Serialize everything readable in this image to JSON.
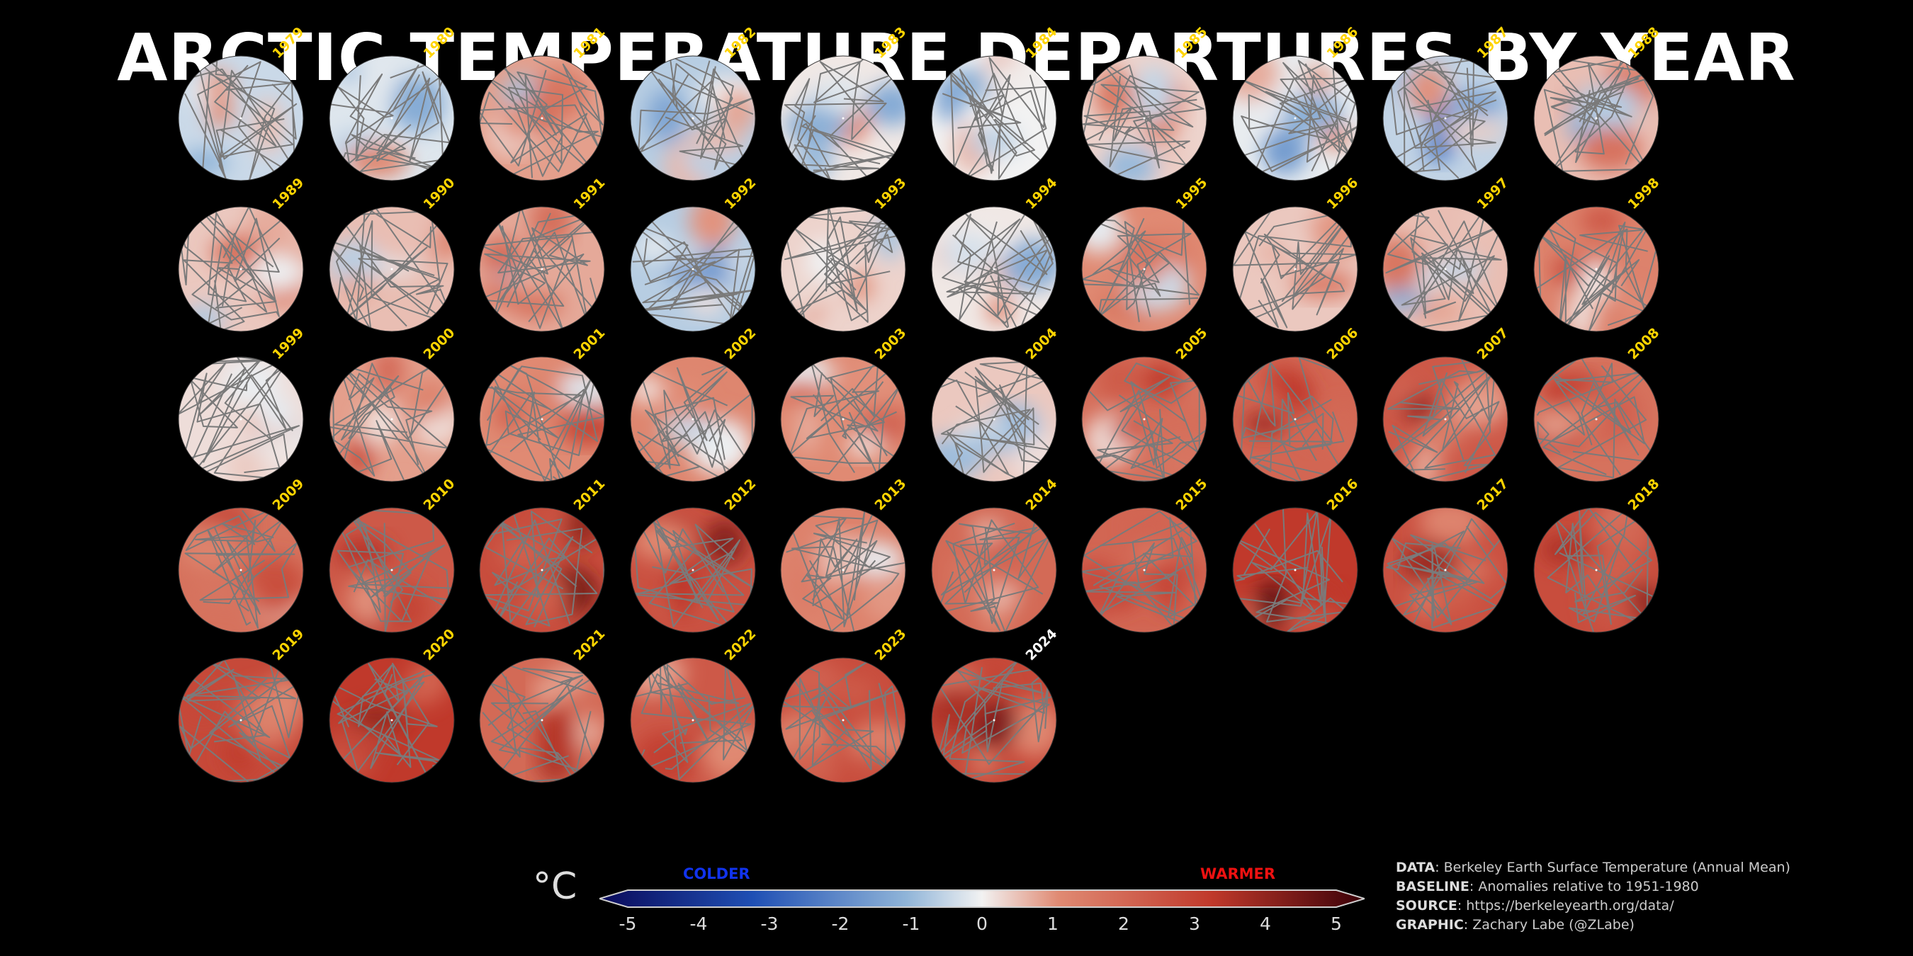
{
  "title": "ARCTIC TEMPERATURE DEPARTURES BY YEAR",
  "chart_data": {
    "type": "heatmap",
    "title": "ARCTIC TEMPERATURE DEPARTURES BY YEAR",
    "panels": [
      {
        "year": "1979",
        "mean_anomaly": -0.4
      },
      {
        "year": "1980",
        "mean_anomaly": -0.2
      },
      {
        "year": "1981",
        "mean_anomaly": 0.8
      },
      {
        "year": "1982",
        "mean_anomaly": -0.6
      },
      {
        "year": "1983",
        "mean_anomaly": 0.1
      },
      {
        "year": "1984",
        "mean_anomaly": 0.0
      },
      {
        "year": "1985",
        "mean_anomaly": 0.3
      },
      {
        "year": "1986",
        "mean_anomaly": -0.1
      },
      {
        "year": "1987",
        "mean_anomaly": -0.5
      },
      {
        "year": "1988",
        "mean_anomaly": 0.5
      },
      {
        "year": "1989",
        "mean_anomaly": 0.4
      },
      {
        "year": "1990",
        "mean_anomaly": 0.5
      },
      {
        "year": "1991",
        "mean_anomaly": 0.7
      },
      {
        "year": "1992",
        "mean_anomaly": -0.6
      },
      {
        "year": "1993",
        "mean_anomaly": 0.3
      },
      {
        "year": "1994",
        "mean_anomaly": 0.1
      },
      {
        "year": "1995",
        "mean_anomaly": 1.0
      },
      {
        "year": "1996",
        "mean_anomaly": 0.4
      },
      {
        "year": "1997",
        "mean_anomaly": 0.5
      },
      {
        "year": "1998",
        "mean_anomaly": 1.2
      },
      {
        "year": "1999",
        "mean_anomaly": 0.2
      },
      {
        "year": "2000",
        "mean_anomaly": 0.8
      },
      {
        "year": "2001",
        "mean_anomaly": 1.0
      },
      {
        "year": "2002",
        "mean_anomaly": 1.1
      },
      {
        "year": "2003",
        "mean_anomaly": 1.0
      },
      {
        "year": "2004",
        "mean_anomaly": 0.4
      },
      {
        "year": "2005",
        "mean_anomaly": 1.7
      },
      {
        "year": "2006",
        "mean_anomaly": 1.9
      },
      {
        "year": "2007",
        "mean_anomaly": 2.2
      },
      {
        "year": "2008",
        "mean_anomaly": 1.6
      },
      {
        "year": "2009",
        "mean_anomaly": 1.6
      },
      {
        "year": "2010",
        "mean_anomaly": 2.2
      },
      {
        "year": "2011",
        "mean_anomaly": 2.5
      },
      {
        "year": "2012",
        "mean_anomaly": 2.4
      },
      {
        "year": "2013",
        "mean_anomaly": 1.2
      },
      {
        "year": "2014",
        "mean_anomaly": 1.8
      },
      {
        "year": "2015",
        "mean_anomaly": 1.9
      },
      {
        "year": "2016",
        "mean_anomaly": 3.0
      },
      {
        "year": "2017",
        "mean_anomaly": 2.4
      },
      {
        "year": "2018",
        "mean_anomaly": 2.5
      },
      {
        "year": "2019",
        "mean_anomaly": 2.6
      },
      {
        "year": "2020",
        "mean_anomaly": 3.0
      },
      {
        "year": "2021",
        "mean_anomaly": 1.8
      },
      {
        "year": "2022",
        "mean_anomaly": 2.2
      },
      {
        "year": "2023",
        "mean_anomaly": 2.5
      },
      {
        "year": "2024",
        "mean_anomaly": 2.6
      }
    ],
    "colorbar": {
      "unit": "°C",
      "min": -5,
      "max": 5,
      "ticks": [
        "-5",
        "-4",
        "-3",
        "-2",
        "-1",
        "0",
        "1",
        "2",
        "3",
        "4",
        "5"
      ],
      "low_label": "COLDER",
      "high_label": "WARMER",
      "extend": "both"
    },
    "colors": {
      "cold_extreme": "#0a0a5a",
      "cold": "#1f4fb4",
      "cool": "#8fb4d8",
      "neutral": "#f2f2f2",
      "warm": "#e08a73",
      "hot": "#c0392b",
      "hot_extreme": "#3a0008",
      "year_label": "#ffd400",
      "current_year_label": "#ffffff"
    }
  },
  "credits": [
    {
      "key": "DATA",
      "value": ": Berkeley Earth Surface Temperature (Annual Mean)"
    },
    {
      "key": "BASELINE",
      "value": ": Anomalies relative to 1951-1980"
    },
    {
      "key": "SOURCE",
      "value": ": https://berkeleyearth.org/data/"
    },
    {
      "key": "GRAPHIC",
      "value": ": Zachary Labe (@ZLabe)"
    }
  ]
}
